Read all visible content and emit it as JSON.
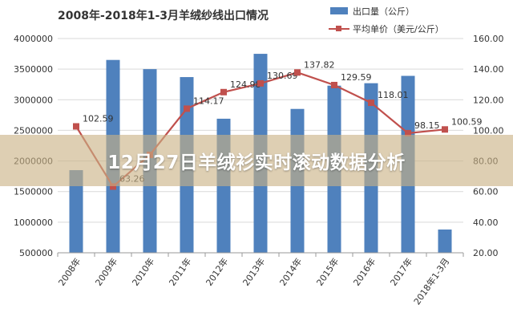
{
  "overlay": {
    "headline": "12月27日羊绒衫实时滚动数据分析"
  },
  "colors": {
    "bar": "#4f81bd",
    "line": "#c0504d",
    "text": "#333333",
    "grid": "#d9d9d9"
  },
  "chart_data": {
    "type": "bar+line",
    "title": "2008年-2018年1-3月羊绒纱线出口情况",
    "categories": [
      "2008年",
      "2009年",
      "2010年",
      "2011年",
      "2012年",
      "2013年",
      "2014年",
      "2015年",
      "2016年",
      "2017年",
      "2018年1-3月"
    ],
    "series": [
      {
        "name": "出口量（公斤）",
        "type": "bar",
        "axis": "left",
        "values": [
          1850000,
          3650000,
          3500000,
          3370000,
          2690000,
          3750000,
          2850000,
          3230000,
          3270000,
          3390000,
          880000
        ]
      },
      {
        "name": "平均单价（美元/公斤）",
        "type": "line",
        "axis": "right",
        "values": [
          102.59,
          63.26,
          84.0,
          114.17,
          124.98,
          130.69,
          137.82,
          129.59,
          118.01,
          98.15,
          100.59
        ],
        "labels": [
          "102.59",
          "63.26",
          "",
          "114.17",
          "124.98",
          "130.69",
          "137.82",
          "129.59",
          "118.01",
          "98.15",
          "100.59"
        ]
      }
    ],
    "y_left": {
      "min": 500000,
      "max": 4000000,
      "ticks": [
        "500000",
        "1000000",
        "1500000",
        "2000000",
        "2500000",
        "3000000",
        "3500000",
        "4000000"
      ]
    },
    "y_right": {
      "min": 20,
      "max": 160,
      "ticks": [
        "20.00",
        "40.00",
        "60.00",
        "80.00",
        "100.00",
        "120.00",
        "140.00",
        "160.00"
      ]
    },
    "legend_position": "top-right",
    "grid": true
  }
}
